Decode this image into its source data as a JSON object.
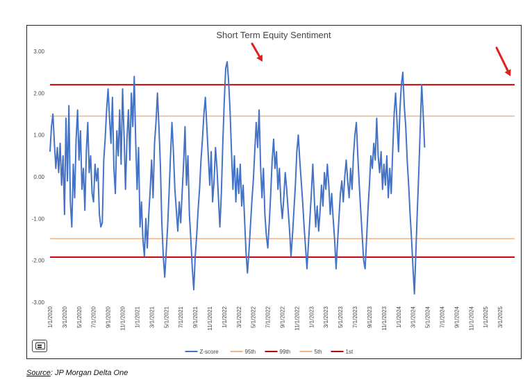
{
  "chart_data": {
    "type": "line",
    "title": "Short Term Equity Sentiment",
    "ylim": [
      -3.0,
      3.0
    ],
    "y_ticks": [
      "3.00",
      "2.00",
      "1.00",
      "0.00",
      "-1.00",
      "-2.00",
      "-3.00"
    ],
    "x_ticks": [
      "1/1/2020",
      "3/1/2020",
      "5/1/2020",
      "7/1/2020",
      "9/1/2020",
      "11/1/2020",
      "1/1/2021",
      "3/1/2021",
      "5/1/2021",
      "7/1/2021",
      "9/1/2021",
      "11/1/2021",
      "1/1/2022",
      "3/1/2022",
      "5/1/2022",
      "7/1/2022",
      "9/1/2022",
      "11/1/2022",
      "1/1/2023",
      "3/1/2023",
      "5/1/2023",
      "7/1/2023",
      "9/1/2023",
      "11/1/2023",
      "1/1/2024",
      "3/1/2024",
      "5/1/2024",
      "7/1/2024",
      "9/1/2024",
      "11/1/2024",
      "1/1/2025",
      "3/1/2025"
    ],
    "x_range_months": [
      0,
      64
    ],
    "grid": false,
    "legend_position": "bottom",
    "series": [
      {
        "name": "Z-score",
        "color": "#4472c4",
        "points": [
          [
            0.0,
            0.6
          ],
          [
            0.2,
            1.2
          ],
          [
            0.4,
            1.5
          ],
          [
            0.6,
            0.8
          ],
          [
            0.8,
            0.2
          ],
          [
            1.0,
            0.7
          ],
          [
            1.2,
            0.1
          ],
          [
            1.4,
            0.8
          ],
          [
            1.6,
            -0.2
          ],
          [
            1.8,
            0.5
          ],
          [
            2.0,
            -0.9
          ],
          [
            2.2,
            1.4
          ],
          [
            2.4,
            -0.1
          ],
          [
            2.6,
            1.7
          ],
          [
            2.8,
            -0.6
          ],
          [
            3.0,
            -1.2
          ],
          [
            3.2,
            0.3
          ],
          [
            3.4,
            -0.5
          ],
          [
            3.6,
            0.9
          ],
          [
            3.8,
            1.6
          ],
          [
            4.0,
            0.4
          ],
          [
            4.2,
            1.1
          ],
          [
            4.4,
            -0.3
          ],
          [
            4.6,
            0.2
          ],
          [
            4.8,
            -0.8
          ],
          [
            5.0,
            0.6
          ],
          [
            5.2,
            1.3
          ],
          [
            5.4,
            0.1
          ],
          [
            5.6,
            0.5
          ],
          [
            5.8,
            -0.4
          ],
          [
            6.0,
            -0.6
          ],
          [
            6.2,
            0.3
          ],
          [
            6.4,
            -0.1
          ],
          [
            6.6,
            0.2
          ],
          [
            6.8,
            -0.9
          ],
          [
            7.0,
            -1.2
          ],
          [
            7.2,
            -1.1
          ],
          [
            7.4,
            0.4
          ],
          [
            7.6,
            0.9
          ],
          [
            7.8,
            1.6
          ],
          [
            8.0,
            2.1
          ],
          [
            8.2,
            1.4
          ],
          [
            8.4,
            0.8
          ],
          [
            8.6,
            1.9
          ],
          [
            8.8,
            0.2
          ],
          [
            9.0,
            -0.4
          ],
          [
            9.2,
            1.1
          ],
          [
            9.4,
            0.5
          ],
          [
            9.6,
            1.6
          ],
          [
            9.8,
            0.3
          ],
          [
            10.0,
            2.1
          ],
          [
            10.2,
            1.0
          ],
          [
            10.4,
            -0.3
          ],
          [
            10.6,
            0.9
          ],
          [
            10.8,
            1.6
          ],
          [
            11.0,
            0.4
          ],
          [
            11.2,
            2.0
          ],
          [
            11.4,
            1.2
          ],
          [
            11.6,
            2.4
          ],
          [
            11.8,
            0.9
          ],
          [
            12.0,
            -0.3
          ],
          [
            12.2,
            0.7
          ],
          [
            12.4,
            -1.2
          ],
          [
            12.6,
            -0.6
          ],
          [
            12.8,
            -1.5
          ],
          [
            13.0,
            -1.9
          ],
          [
            13.2,
            -1.0
          ],
          [
            13.4,
            -1.7
          ],
          [
            13.6,
            -0.9
          ],
          [
            13.8,
            -0.3
          ],
          [
            14.0,
            0.4
          ],
          [
            14.2,
            -0.5
          ],
          [
            14.4,
            0.8
          ],
          [
            14.6,
            1.3
          ],
          [
            14.8,
            2.0
          ],
          [
            15.0,
            1.2
          ],
          [
            15.2,
            0.3
          ],
          [
            15.4,
            -1.1
          ],
          [
            15.6,
            -1.9
          ],
          [
            15.8,
            -2.4
          ],
          [
            16.0,
            -1.8
          ],
          [
            16.2,
            -1.2
          ],
          [
            16.4,
            -0.4
          ],
          [
            16.6,
            0.5
          ],
          [
            16.8,
            1.3
          ],
          [
            17.0,
            0.6
          ],
          [
            17.2,
            -0.3
          ],
          [
            17.4,
            -0.8
          ],
          [
            17.6,
            -1.3
          ],
          [
            17.8,
            -0.6
          ],
          [
            18.0,
            -1.1
          ],
          [
            18.2,
            -0.4
          ],
          [
            18.4,
            0.3
          ],
          [
            18.6,
            1.2
          ],
          [
            18.8,
            -0.2
          ],
          [
            19.0,
            0.5
          ],
          [
            19.2,
            -0.9
          ],
          [
            19.4,
            -1.5
          ],
          [
            19.6,
            -2.2
          ],
          [
            19.8,
            -2.7
          ],
          [
            20.0,
            -1.9
          ],
          [
            20.2,
            -1.4
          ],
          [
            20.4,
            -0.8
          ],
          [
            20.6,
            -0.3
          ],
          [
            20.8,
            0.4
          ],
          [
            21.0,
            0.9
          ],
          [
            21.2,
            1.5
          ],
          [
            21.4,
            1.9
          ],
          [
            21.6,
            1.2
          ],
          [
            21.8,
            0.5
          ],
          [
            22.0,
            -0.2
          ],
          [
            22.2,
            0.6
          ],
          [
            22.4,
            -0.6
          ],
          [
            22.6,
            -0.1
          ],
          [
            22.8,
            0.7
          ],
          [
            23.0,
            0.2
          ],
          [
            23.2,
            -0.5
          ],
          [
            23.4,
            -1.2
          ],
          [
            23.6,
            -0.4
          ],
          [
            23.8,
            0.8
          ],
          [
            24.0,
            1.8
          ],
          [
            24.2,
            2.6
          ],
          [
            24.4,
            2.75
          ],
          [
            24.6,
            2.3
          ],
          [
            24.8,
            1.6
          ],
          [
            25.0,
            0.6
          ],
          [
            25.2,
            -0.3
          ],
          [
            25.4,
            0.5
          ],
          [
            25.6,
            -0.6
          ],
          [
            25.8,
            0.2
          ],
          [
            26.0,
            -0.4
          ],
          [
            26.2,
            0.3
          ],
          [
            26.4,
            -0.7
          ],
          [
            26.6,
            -0.2
          ],
          [
            26.8,
            -1.0
          ],
          [
            27.0,
            -1.8
          ],
          [
            27.2,
            -2.3
          ],
          [
            27.4,
            -1.8
          ],
          [
            27.6,
            -1.2
          ],
          [
            27.8,
            -0.6
          ],
          [
            28.0,
            -0.1
          ],
          [
            28.2,
            0.6
          ],
          [
            28.4,
            1.3
          ],
          [
            28.6,
            0.7
          ],
          [
            28.8,
            1.6
          ],
          [
            29.0,
            0.3
          ],
          [
            29.2,
            -0.5
          ],
          [
            29.4,
            0.2
          ],
          [
            29.6,
            -0.9
          ],
          [
            29.8,
            -1.4
          ],
          [
            30.0,
            -1.7
          ],
          [
            30.2,
            -1.1
          ],
          [
            30.4,
            -0.4
          ],
          [
            30.6,
            0.4
          ],
          [
            30.8,
            0.9
          ],
          [
            31.0,
            0.2
          ],
          [
            31.2,
            0.6
          ],
          [
            31.4,
            -0.3
          ],
          [
            31.6,
            0.2
          ],
          [
            31.8,
            -0.6
          ],
          [
            32.0,
            -1.0
          ],
          [
            32.2,
            -0.5
          ],
          [
            32.4,
            0.1
          ],
          [
            32.6,
            -0.3
          ],
          [
            32.8,
            -0.8
          ],
          [
            33.0,
            -1.3
          ],
          [
            33.2,
            -1.9
          ],
          [
            33.4,
            -1.4
          ],
          [
            33.6,
            -0.8
          ],
          [
            33.8,
            -0.2
          ],
          [
            34.0,
            0.6
          ],
          [
            34.2,
            1.0
          ],
          [
            34.4,
            0.4
          ],
          [
            34.6,
            -0.1
          ],
          [
            34.8,
            -0.6
          ],
          [
            35.0,
            -1.2
          ],
          [
            35.2,
            -1.7
          ],
          [
            35.4,
            -2.2
          ],
          [
            35.6,
            -1.6
          ],
          [
            35.8,
            -1.0
          ],
          [
            36.0,
            -0.4
          ],
          [
            36.2,
            0.3
          ],
          [
            36.4,
            -0.5
          ],
          [
            36.6,
            -1.2
          ],
          [
            36.8,
            -0.7
          ],
          [
            37.0,
            -1.3
          ],
          [
            37.2,
            -0.8
          ],
          [
            37.4,
            -0.2
          ],
          [
            37.6,
            -0.7
          ],
          [
            37.8,
            0.1
          ],
          [
            38.0,
            -0.3
          ],
          [
            38.2,
            0.3
          ],
          [
            38.4,
            -0.2
          ],
          [
            38.6,
            -0.9
          ],
          [
            38.8,
            -0.4
          ],
          [
            39.0,
            -1.0
          ],
          [
            39.2,
            -1.5
          ],
          [
            39.4,
            -2.2
          ],
          [
            39.6,
            -1.6
          ],
          [
            39.8,
            -1.0
          ],
          [
            40.0,
            -0.4
          ],
          [
            40.2,
            -0.1
          ],
          [
            40.4,
            -0.6
          ],
          [
            40.6,
            0.0
          ],
          [
            40.8,
            0.4
          ],
          [
            41.0,
            -0.1
          ],
          [
            41.2,
            -0.5
          ],
          [
            41.4,
            0.2
          ],
          [
            41.6,
            -0.3
          ],
          [
            41.8,
            0.5
          ],
          [
            42.0,
            1.0
          ],
          [
            42.2,
            1.3
          ],
          [
            42.4,
            0.5
          ],
          [
            42.6,
            -0.2
          ],
          [
            42.8,
            -0.8
          ],
          [
            43.0,
            -1.4
          ],
          [
            43.2,
            -2.0
          ],
          [
            43.4,
            -2.2
          ],
          [
            43.6,
            -1.5
          ],
          [
            43.8,
            -0.8
          ],
          [
            44.0,
            -0.2
          ],
          [
            44.2,
            0.5
          ],
          [
            44.4,
            0.2
          ],
          [
            44.6,
            0.8
          ],
          [
            44.8,
            0.4
          ],
          [
            45.0,
            1.4
          ],
          [
            45.2,
            0.5
          ],
          [
            45.4,
            0.1
          ],
          [
            45.6,
            0.6
          ],
          [
            45.8,
            -0.3
          ],
          [
            46.0,
            0.3
          ],
          [
            46.2,
            -0.2
          ],
          [
            46.4,
            0.5
          ],
          [
            46.6,
            -0.5
          ],
          [
            46.8,
            0.2
          ],
          [
            47.0,
            -0.4
          ],
          [
            47.2,
            0.6
          ],
          [
            47.4,
            1.5
          ],
          [
            47.6,
            2.0
          ],
          [
            47.8,
            1.3
          ],
          [
            48.0,
            0.6
          ],
          [
            48.2,
            1.6
          ],
          [
            48.4,
            2.2
          ],
          [
            48.6,
            2.5
          ],
          [
            48.8,
            1.7
          ],
          [
            49.0,
            1.2
          ],
          [
            49.2,
            0.4
          ],
          [
            49.4,
            -0.2
          ],
          [
            49.6,
            -0.9
          ],
          [
            49.8,
            -1.5
          ],
          [
            50.0,
            -2.2
          ],
          [
            50.2,
            -2.8
          ],
          [
            50.4,
            -1.8
          ],
          [
            50.6,
            -0.8
          ],
          [
            50.8,
            0.1
          ],
          [
            51.0,
            1.2
          ],
          [
            51.2,
            2.2
          ],
          [
            51.4,
            1.5
          ],
          [
            51.6,
            0.7
          ]
        ]
      }
    ],
    "reference_lines": [
      {
        "name": "95th",
        "value": 1.45,
        "color": "#f4b183"
      },
      {
        "name": "99th",
        "value": 2.2,
        "color": "#c00000"
      },
      {
        "name": "5th",
        "value": -1.48,
        "color": "#f4b183"
      },
      {
        "name": "1st",
        "value": -1.92,
        "color": "#c00000"
      }
    ],
    "legend": [
      "Z-score",
      "95th",
      "99th",
      "5th",
      "1st"
    ],
    "arrow_color": "#e0201c"
  },
  "source": {
    "label": "Source",
    "text": ": JP Morgan Delta One"
  }
}
